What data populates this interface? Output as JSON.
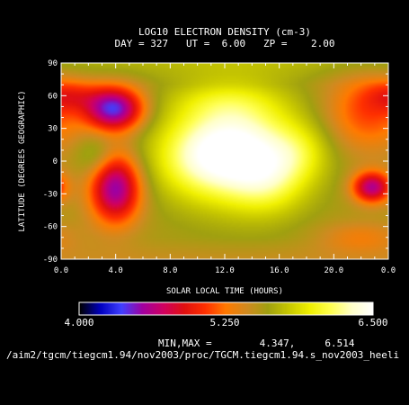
{
  "chart_data": {
    "type": "heatmap",
    "title": "LOG10 ELECTRON DENSITY (cm-3)",
    "subtitle": "DAY = 327   UT =  6.00   ZP =    2.00",
    "xlabel": "SOLAR LOCAL TIME (HOURS)",
    "ylabel": "LATITUDE (DEGREES GEOGRAPHIC)",
    "xlim": [
      0,
      24
    ],
    "ylim": [
      -90,
      90
    ],
    "x_ticks": [
      "0.0",
      "4.0",
      "8.0",
      "12.0",
      "16.0",
      "20.0",
      "0.0"
    ],
    "y_ticks": [
      "90",
      "60",
      "30",
      "0",
      "-30",
      "-60",
      "-90"
    ],
    "colorbar": {
      "min_label": "4.000",
      "mid_label": "5.250",
      "max_label": "6.500",
      "range": [
        4.0,
        6.5
      ],
      "colors": [
        "#000000",
        "#0000c0",
        "#4040ff",
        "#a000a0",
        "#d00060",
        "#e01010",
        "#ff3000",
        "#ff7a00",
        "#d08a20",
        "#a0a010",
        "#c8c800",
        "#f0f000",
        "#ffff50",
        "#ffffc8",
        "#ffffff"
      ]
    },
    "minmax_text": "MIN,MAX =        4.347,     6.514",
    "file_path": "/aim2/tgcm/tiegcm1.94/nov2003/proc/TGCM.tiegcm1.94.s_nov2003_heeli",
    "levels_note": "values in log10 cm-3",
    "field": {
      "background": 5.55,
      "blobs": [
        {
          "x": 12.6,
          "y": 12,
          "sx": 3.3,
          "sy": 34,
          "a": 0.95
        },
        {
          "x": 10.0,
          "y": 0,
          "sx": 2.4,
          "sy": 22,
          "a": 0.25
        },
        {
          "x": 15.2,
          "y": -18,
          "sx": 2.0,
          "sy": 22,
          "a": 0.35
        },
        {
          "x": 17.5,
          "y": 8,
          "sx": 1.6,
          "sy": 18,
          "a": 0.25
        },
        {
          "x": 12.0,
          "y": 55,
          "sx": 2.8,
          "sy": 12,
          "a": 0.15
        },
        {
          "x": 3.9,
          "y": 48,
          "sx": 1.5,
          "sy": 14,
          "a": -1.15
        },
        {
          "x": 4.0,
          "y": -25,
          "sx": 1.3,
          "sy": 22,
          "a": -1.05
        },
        {
          "x": 2.5,
          "y": 5,
          "sx": 1.0,
          "sy": 14,
          "a": 0.25
        },
        {
          "x": 22.8,
          "y": -24,
          "sx": 1.0,
          "sy": 10,
          "a": -0.95
        },
        {
          "x": 0.6,
          "y": 60,
          "sx": 1.5,
          "sy": 10,
          "a": -0.35
        },
        {
          "x": 22.5,
          "y": 45,
          "sx": 2.2,
          "sy": 25,
          "a": -0.45
        },
        {
          "x": 22.0,
          "y": -70,
          "sx": 2.2,
          "sy": 10,
          "a": -0.25
        }
      ],
      "pole_north": 0.15,
      "pole_south": -0.1
    }
  }
}
